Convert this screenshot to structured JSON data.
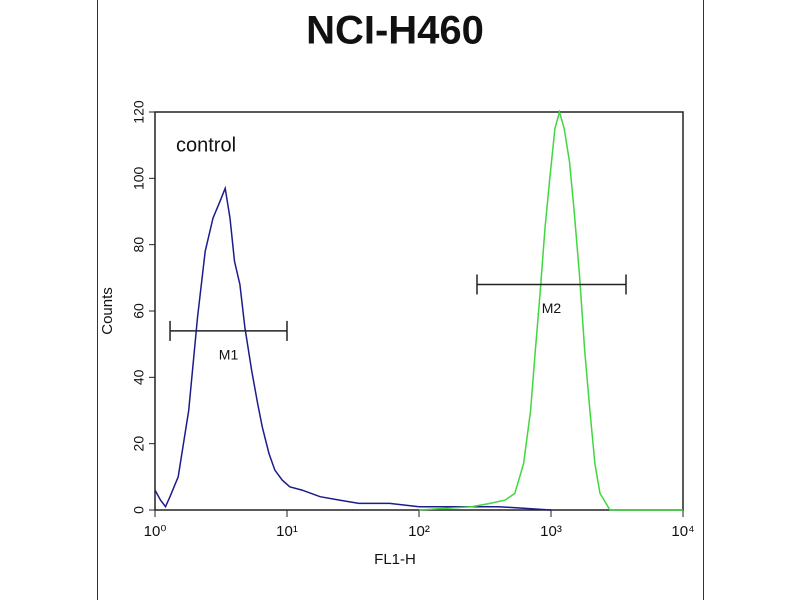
{
  "chart_data": {
    "type": "histogram-overlay",
    "title": "NCI-H460",
    "x_label": "FL1-H",
    "y_label": "Counts",
    "xscale": "log",
    "xlim": [
      1,
      10000
    ],
    "ylim": [
      0,
      120
    ],
    "xticks": [
      {
        "value": 1,
        "label": "10⁰"
      },
      {
        "value": 10,
        "label": "10¹"
      },
      {
        "value": 100,
        "label": "10²"
      },
      {
        "value": 1000,
        "label": "10³"
      },
      {
        "value": 10000,
        "label": "10⁴"
      }
    ],
    "yticks": [
      0,
      20,
      40,
      60,
      80,
      100,
      120
    ],
    "series": [
      {
        "name": "control",
        "color": "#1c1c8a",
        "x": [
          1,
          1.1,
          1.2,
          1.3,
          1.5,
          1.8,
          2.1,
          2.4,
          2.75,
          3.1,
          3.4,
          3.7,
          4.0,
          4.4,
          4.8,
          5.4,
          6.0,
          6.5,
          7.3,
          8.1,
          9.2,
          10.5,
          13,
          17.8,
          25,
          35,
          60,
          100,
          200,
          400,
          1000
        ],
        "values": [
          6,
          3,
          1,
          4,
          10,
          30,
          58,
          78,
          88,
          93,
          97,
          88,
          75,
          68,
          55,
          42,
          32,
          25,
          17,
          12,
          9,
          7,
          6,
          4,
          3,
          2,
          2,
          1,
          1,
          1,
          0
        ]
      },
      {
        "color": "#3fd83f",
        "x": [
          100,
          250,
          346,
          450,
          532,
          620,
          700,
          760,
          826,
          900,
          980,
          1070,
          1160,
          1260,
          1380,
          1500,
          1650,
          1800,
          1970,
          2150,
          2350,
          2800,
          5000,
          10000
        ],
        "values": [
          0,
          1,
          2,
          3,
          5,
          14,
          30,
          48,
          65,
          85,
          100,
          115,
          120,
          115,
          105,
          90,
          70,
          48,
          30,
          14,
          5,
          0,
          0,
          0
        ]
      }
    ],
    "markers": [
      {
        "label": "M1",
        "x": [
          1.3,
          10
        ],
        "y": 54
      },
      {
        "label": "M2",
        "x": [
          275,
          3700
        ],
        "y": 68
      }
    ]
  }
}
